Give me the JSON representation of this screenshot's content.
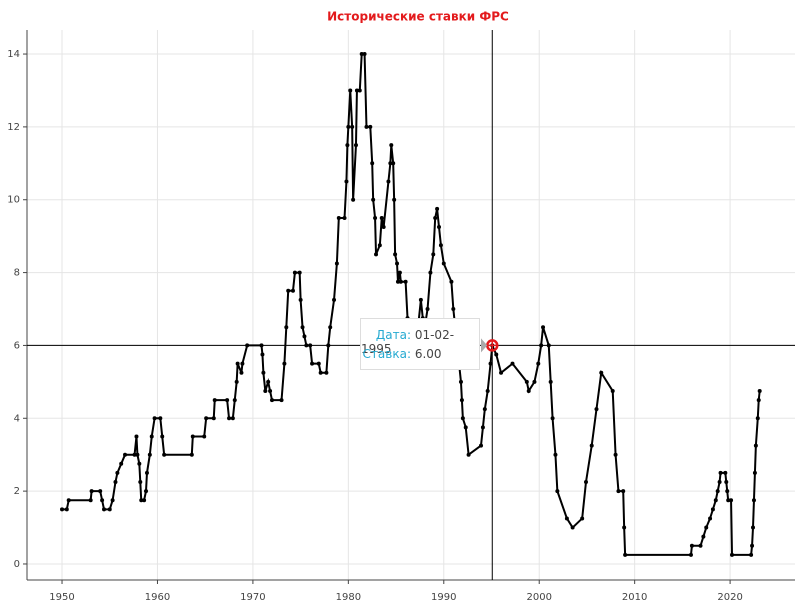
{
  "chart_data": {
    "type": "line",
    "title": "Исторические ставки ФРС",
    "x": [
      1950,
      1950.5,
      1950.7,
      1953,
      1953.1,
      1954,
      1954.2,
      1954.4,
      1955,
      1955.3,
      1955.6,
      1955.8,
      1956.2,
      1956.6,
      1957.6,
      1957.8,
      1957.9,
      1958.1,
      1958.2,
      1958.3,
      1958.6,
      1958.8,
      1958.9,
      1959.2,
      1959.4,
      1959.7,
      1960.3,
      1960.5,
      1960.7,
      1963.6,
      1963.7,
      1964.9,
      1965.1,
      1965.9,
      1966,
      1967.3,
      1967.5,
      1967.9,
      1968.1,
      1968.3,
      1968.4,
      1968.8,
      1968.9,
      1969.4,
      1970.9,
      1971,
      1971.1,
      1971.3,
      1971.6,
      1971.8,
      1972,
      1973,
      1973.3,
      1973.5,
      1973.7,
      1974.2,
      1974.4,
      1974.9,
      1975,
      1975.2,
      1975.4,
      1975.6,
      1976,
      1976.2,
      1976.9,
      1977.1,
      1977.7,
      1977.9,
      1978.1,
      1978.5,
      1978.8,
      1979,
      1979.6,
      1979.8,
      1979.9,
      1980,
      1980.2,
      1980.4,
      1980.5,
      1980.8,
      1980.9,
      1981.2,
      1981.4,
      1981.7,
      1981.9,
      1982.3,
      1982.5,
      1982.6,
      1982.8,
      1982.9,
      1983.3,
      1983.5,
      1983.7,
      1984.2,
      1984.4,
      1984.5,
      1984.7,
      1984.8,
      1984.9,
      1985.1,
      1985.2,
      1985.4,
      1985.5,
      1986,
      1986.2,
      1986.5,
      1986.8,
      1987,
      1987.3,
      1987.6,
      1987.8,
      1988,
      1988.3,
      1988.6,
      1988.9,
      1989.1,
      1989.3,
      1989.5,
      1989.7,
      1990,
      1990.8,
      1991,
      1991.3,
      1991.5,
      1991.8,
      1991.9,
      1992,
      1992.3,
      1992.6,
      1993.9,
      1994.1,
      1994.3,
      1994.6,
      1994.9,
      1995.08,
      1995.5,
      1996,
      1997.2,
      1998.7,
      1998.9,
      1999.5,
      1999.9,
      2000.2,
      2000.4,
      2001,
      2001.2,
      2001.4,
      2001.7,
      2001.9,
      2002.9,
      2003.5,
      2004.5,
      2004.9,
      2005.5,
      2006,
      2006.5,
      2007.7,
      2008,
      2008.3,
      2008.8,
      2008.9,
      2009,
      2015.9,
      2016,
      2016.9,
      2017.2,
      2017.5,
      2017.9,
      2018.2,
      2018.5,
      2018.7,
      2018.9,
      2019,
      2019.5,
      2019.6,
      2019.7,
      2019.8,
      2020.1,
      2020.2,
      2022.2,
      2022.3,
      2022.4,
      2022.5,
      2022.6,
      2022.7,
      2022.9,
      2023,
      2023.1
    ],
    "series": [
      {
        "color": "#000000",
        "values": [
          1.5,
          1.5,
          1.75,
          1.75,
          2,
          2,
          1.75,
          1.5,
          1.5,
          1.75,
          2.25,
          2.5,
          2.75,
          3,
          3,
          3.5,
          3,
          2.75,
          2.25,
          1.75,
          1.75,
          2,
          2.5,
          3,
          3.5,
          4,
          4,
          3.5,
          3,
          3,
          3.5,
          3.5,
          4,
          4,
          4.5,
          4.5,
          4,
          4,
          4.5,
          5,
          5.5,
          5.25,
          5.5,
          6,
          6,
          5.75,
          5.25,
          4.75,
          5,
          4.75,
          4.5,
          4.5,
          5.5,
          6.5,
          7.5,
          7.5,
          8,
          8,
          7.25,
          6.5,
          6.25,
          6,
          6,
          5.5,
          5.5,
          5.25,
          5.25,
          6,
          6.5,
          7.25,
          8.25,
          9.5,
          9.5,
          10.5,
          11.5,
          12,
          13,
          12,
          10,
          11.5,
          13,
          13,
          14,
          14,
          12,
          12,
          11,
          10,
          9.5,
          8.5,
          8.75,
          9.5,
          9.25,
          10.5,
          11,
          11.5,
          11,
          10,
          8.5,
          8.25,
          7.75,
          8,
          7.75,
          7.75,
          6.75,
          6.5,
          6,
          6,
          6.5,
          7.25,
          6.75,
          6.5,
          7,
          8,
          8.5,
          9.5,
          9.75,
          9.25,
          8.75,
          8.25,
          7.75,
          7,
          6.25,
          5.75,
          5,
          4.5,
          4,
          3.75,
          3,
          3.25,
          3.75,
          4.25,
          4.75,
          5.5,
          6,
          5.75,
          5.25,
          5.5,
          5,
          4.75,
          5,
          5.5,
          6,
          6.5,
          6,
          5,
          4,
          3,
          2,
          1.25,
          1,
          1.25,
          2.25,
          3.25,
          4.25,
          5.25,
          4.75,
          3,
          2,
          2,
          1,
          0.25,
          0.25,
          0.5,
          0.5,
          0.75,
          1,
          1.25,
          1.5,
          1.75,
          2,
          2.25,
          2.5,
          2.5,
          2.25,
          2,
          1.75,
          1.75,
          0.25,
          0.25,
          0.5,
          1,
          1.75,
          2.5,
          3.25,
          4,
          4.5,
          4.75
        ]
      }
    ],
    "xlim": [
      1946.33,
      2026.8
    ],
    "ylim": [
      -0.44,
      14.66
    ],
    "xticks": [
      1950,
      1960,
      1970,
      1980,
      1990,
      2000,
      2010,
      2020
    ],
    "yticks": [
      0,
      2,
      4,
      6,
      8,
      10,
      12,
      14
    ],
    "grid": true,
    "crosshair": {
      "x": 1995.08,
      "y": 6
    },
    "tooltip": {
      "date_label": "Дата:",
      "date": "01-02-1995",
      "value_label": "Ставка:",
      "value": {
        "value": 6,
        "label": "6.00"
      }
    }
  }
}
